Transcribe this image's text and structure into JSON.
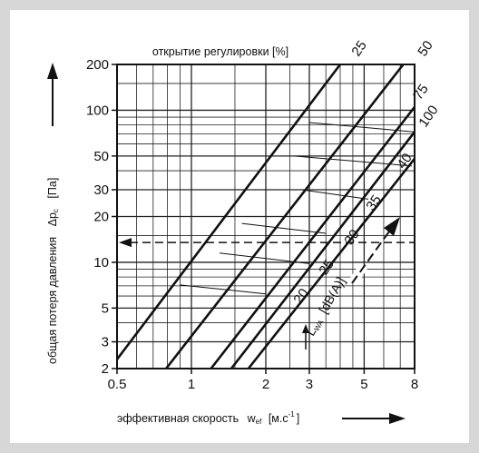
{
  "chart_data": {
    "type": "line",
    "title": "открытие регулировки [%]",
    "xlabel": "эффективная скорость w_ef [м.с⁻¹]",
    "xlabel_main": "эффективная скорость",
    "xlabel_symbol": "w",
    "xlabel_sub": "ef",
    "xlabel_unit": "[м.с",
    "xlabel_unit_sup": "-1",
    "xlabel_unit_close": "]",
    "ylabel": "общая потеря давления Δp_c [Па]",
    "ylabel_main": "общая потеря давления",
    "ylabel_symbol": "Δp",
    "ylabel_sub": "c",
    "ylabel_unit": "[Па]",
    "x_scale": "log",
    "y_scale": "log",
    "xlim": [
      0.5,
      8
    ],
    "ylim": [
      2,
      200
    ],
    "grid": true,
    "x_ticks": [
      {
        "value": 0.5,
        "label": "0.5"
      },
      {
        "value": 1,
        "label": "1"
      },
      {
        "value": 2,
        "label": "2"
      },
      {
        "value": 3,
        "label": "3"
      },
      {
        "value": 5,
        "label": "5"
      },
      {
        "value": 8,
        "label": "8"
      }
    ],
    "y_ticks": [
      {
        "value": 2,
        "label": "2"
      },
      {
        "value": 3,
        "label": "3"
      },
      {
        "value": 5,
        "label": "5"
      },
      {
        "value": 10,
        "label": "10"
      },
      {
        "value": 20,
        "label": "20"
      },
      {
        "value": 30,
        "label": "30"
      },
      {
        "value": 50,
        "label": "50"
      },
      {
        "value": 100,
        "label": "100"
      },
      {
        "value": 200,
        "label": "200"
      }
    ],
    "x_grid": [
      0.5,
      0.6,
      0.7,
      0.8,
      0.9,
      1,
      1.5,
      2,
      2.5,
      3,
      3.5,
      4,
      4.5,
      5,
      6,
      7,
      8
    ],
    "y_grid": [
      2,
      3,
      4,
      5,
      6,
      7,
      8,
      9,
      10,
      15,
      20,
      30,
      40,
      50,
      60,
      70,
      80,
      90,
      100,
      150,
      200
    ],
    "series": [
      {
        "name": "25",
        "points": [
          [
            0.5,
            2.3
          ],
          [
            4.0,
            200
          ]
        ]
      },
      {
        "name": "50",
        "points": [
          [
            0.79,
            2.0
          ],
          [
            7.2,
            200
          ]
        ]
      },
      {
        "name": "75",
        "points": [
          [
            1.2,
            2.0
          ],
          [
            8.0,
            105
          ]
        ]
      },
      {
        "name": "100",
        "points": [
          [
            1.45,
            2.0
          ],
          [
            8.0,
            72
          ]
        ]
      },
      {
        "name": "40",
        "points": [
          [
            1.7,
            2.0
          ],
          [
            8.0,
            48
          ]
        ]
      }
    ],
    "sound_lines": [
      {
        "points": [
          [
            0.9,
            7.1
          ],
          [
            2.0,
            6.2
          ]
        ]
      },
      {
        "points": [
          [
            1.3,
            11.5
          ],
          [
            3.0,
            9.8
          ]
        ]
      },
      {
        "points": [
          [
            1.6,
            18.0
          ],
          [
            3.5,
            15.5
          ]
        ]
      },
      {
        "points": [
          [
            2.8,
            30.0
          ],
          [
            5.2,
            26.0
          ]
        ]
      },
      {
        "points": [
          [
            2.6,
            50.0
          ],
          [
            7.8,
            43.0
          ]
        ]
      },
      {
        "points": [
          [
            3.0,
            83.0
          ],
          [
            8.0,
            72.0
          ]
        ]
      }
    ],
    "sound_labels": [
      "20",
      "25",
      "30",
      "35"
    ],
    "sound_label": "L_WA [dB(A)]",
    "sound_label_main": "L",
    "sound_label_sub": "WA",
    "sound_label_unit": "[dB(A)]",
    "reference_line": {
      "y": 13.5,
      "x_from": 0.5,
      "x_to": 8
    }
  }
}
